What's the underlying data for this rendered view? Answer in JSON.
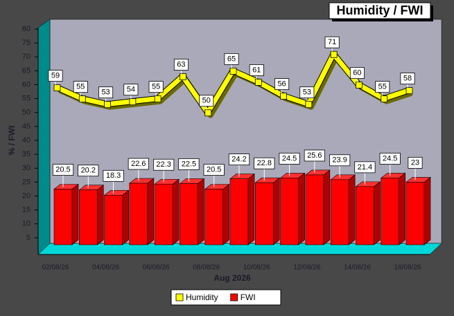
{
  "chart_data": {
    "type": "bar",
    "title": "Humidity / FWI",
    "x_label": "Aug 2026",
    "y_label": "% / FWI",
    "categories": [
      "02/08/26",
      null,
      "04/08/26",
      null,
      "06/08/26",
      null,
      "08/08/26",
      null,
      "10/08/26",
      null,
      "12/08/26",
      null,
      "14/08/26",
      null,
      "16/08/26"
    ],
    "series": [
      {
        "name": "Humidity",
        "type": "line",
        "color": "#ffff00",
        "values": [
          59,
          55,
          53,
          54,
          55,
          63,
          50,
          65,
          61,
          56,
          53,
          71,
          60,
          55,
          58
        ]
      },
      {
        "name": "FWI",
        "type": "bar",
        "color": "#ff0000",
        "values": [
          20.5,
          20.2,
          18.3,
          22.6,
          22.3,
          22.5,
          20.5,
          24.2,
          22.8,
          24.5,
          25.6,
          23.9,
          21.4,
          24.5,
          23
        ]
      }
    ],
    "ylim": [
      0,
      80
    ],
    "yticks": [
      5,
      10,
      15,
      20,
      25,
      30,
      35,
      40,
      45,
      50,
      55,
      60,
      65,
      70,
      75,
      80
    ],
    "grid": false,
    "legend": "bottom"
  }
}
